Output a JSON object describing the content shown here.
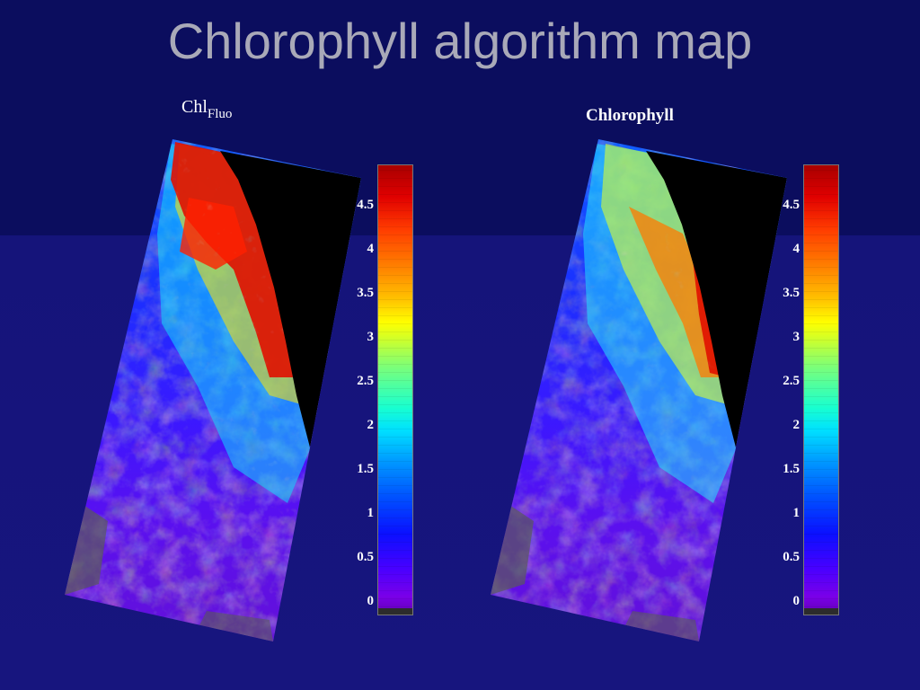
{
  "title": "Chlorophyll algorithm map",
  "panels": [
    {
      "title_main": "Chl",
      "title_sub": "Fluo",
      "colorbar_ticks": [
        "0",
        "0.5",
        "1",
        "1.5",
        "2",
        "2.5",
        "3",
        "3.5",
        "4",
        "4.5"
      ]
    },
    {
      "title_main": "Chlorophyll",
      "title_sub": "",
      "colorbar_ticks": [
        "0",
        "0.5",
        "1",
        "1.5",
        "2",
        "2.5",
        "3",
        "3.5",
        "4",
        "4.5"
      ]
    }
  ],
  "colors": {
    "background_top": "#0b0d5e",
    "background_bottom": "#17157e",
    "land": "#000000",
    "no_data": "#5a5a5a"
  }
}
